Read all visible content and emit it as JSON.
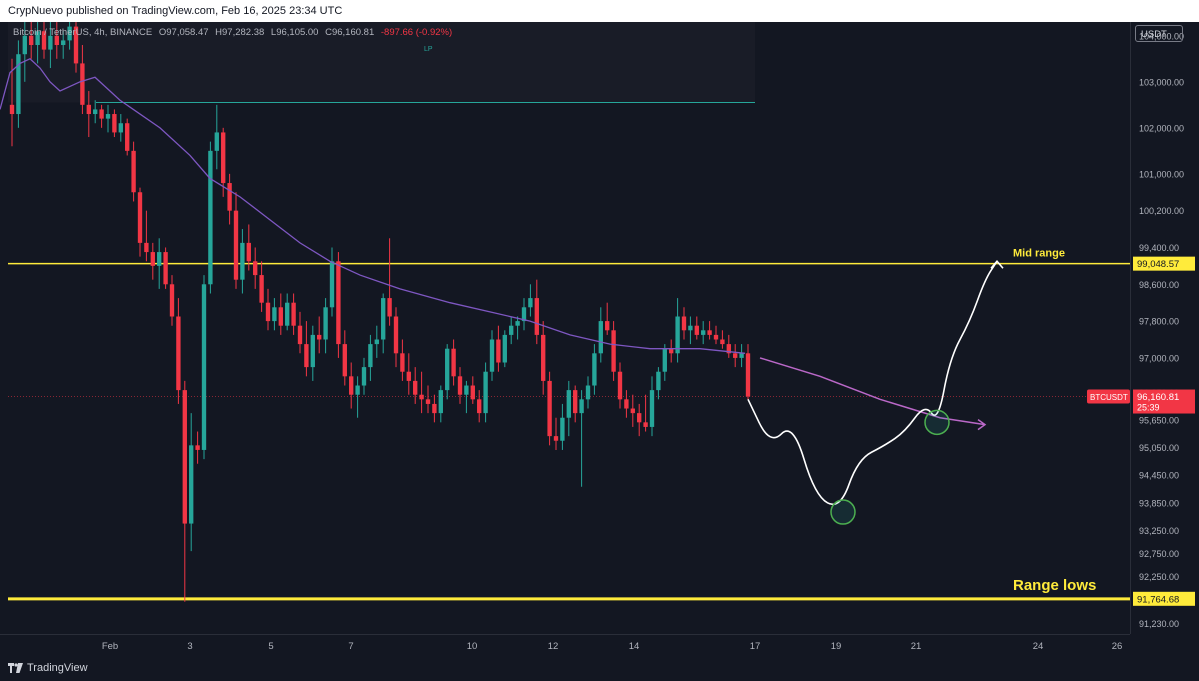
{
  "header": {
    "text": "CrypNuevo published on TradingView.com, Feb 16, 2025 23:34 UTC"
  },
  "legend": {
    "symbol": "Bitcoin / TetherUS, 4h, BINANCE",
    "o": "O97,058.47",
    "h": "H97,282.38",
    "l": "L96,105.00",
    "c": "C96,160.81",
    "change": "-897.66 (-0.92%)"
  },
  "currency": "USDT",
  "lp_label": "LP",
  "footer": {
    "brand": "TradingView"
  },
  "colors": {
    "background": "#131722",
    "up": "#26a69a",
    "down": "#f23645",
    "ma": "#7e57c2",
    "level": "#ffeb3b",
    "projection": "#ffffff",
    "projection_ma": "#ba68c8"
  },
  "chart_data": {
    "type": "candlestick",
    "timeframe": "4h",
    "y_ticks": [
      "104,000.00",
      "103,000.00",
      "102,000.00",
      "101,000.00",
      "100,200.00",
      "99,400.00",
      "98,600.00",
      "97,800.00",
      "97,000.00",
      "96,250.00",
      "95,650.00",
      "95,050.00",
      "94,450.00",
      "93,850.00",
      "93,250.00",
      "92,750.00",
      "92,250.00",
      "91,230.00"
    ],
    "x_ticks": [
      "Feb",
      "3",
      "5",
      "7",
      "10",
      "12",
      "14",
      "17",
      "19",
      "21",
      "24",
      "26"
    ],
    "ylim": [
      91000,
      104300
    ],
    "levels": [
      {
        "label": "Mid range",
        "price": 99048.57,
        "price_label": "99,048.57"
      },
      {
        "label": "Range lows",
        "price": 91764.68,
        "price_label": "91,764.68"
      }
    ],
    "resistance_line": {
      "price": 102550
    },
    "last_price": {
      "symbol": "BTCUSDT",
      "price_label": "96,160.81",
      "countdown": "25:39",
      "price": 96160.81
    },
    "candles": [
      [
        102500,
        103500,
        101600,
        102300
      ],
      [
        102300,
        103900,
        102000,
        103600
      ],
      [
        103600,
        104300,
        103000,
        104000
      ],
      [
        104000,
        104300,
        103500,
        103800
      ],
      [
        103800,
        104300,
        103400,
        104100
      ],
      [
        104100,
        104300,
        103500,
        103700
      ],
      [
        103700,
        104300,
        103300,
        104000
      ],
      [
        104000,
        104300,
        103500,
        103800
      ],
      [
        103800,
        104100,
        103500,
        103900
      ],
      [
        103900,
        104300,
        103700,
        104200
      ],
      [
        104200,
        104300,
        103200,
        103400
      ],
      [
        103400,
        103800,
        102300,
        102500
      ],
      [
        102500,
        102800,
        101800,
        102300
      ],
      [
        102300,
        102600,
        102100,
        102400
      ],
      [
        102400,
        102500,
        102000,
        102200
      ],
      [
        102200,
        102500,
        101900,
        102300
      ],
      [
        102300,
        102400,
        101800,
        101900
      ],
      [
        101900,
        102300,
        101700,
        102100
      ],
      [
        102100,
        102200,
        101400,
        101500
      ],
      [
        101500,
        101700,
        100400,
        100600
      ],
      [
        100600,
        100700,
        99200,
        99500
      ],
      [
        99500,
        100200,
        99100,
        99300
      ],
      [
        99300,
        99500,
        98700,
        99000
      ],
      [
        99000,
        99600,
        98500,
        99300
      ],
      [
        99300,
        99400,
        98500,
        98600
      ],
      [
        98600,
        98800,
        97700,
        97900
      ],
      [
        97900,
        98300,
        96000,
        96300
      ],
      [
        96300,
        96500,
        91700,
        93400
      ],
      [
        93400,
        95800,
        92800,
        95100
      ],
      [
        95100,
        95400,
        94700,
        95000
      ],
      [
        95000,
        98800,
        94800,
        98600
      ],
      [
        98600,
        101700,
        98400,
        101500
      ],
      [
        101500,
        102500,
        101100,
        101900
      ],
      [
        101900,
        102000,
        100500,
        100800
      ],
      [
        100800,
        101000,
        99900,
        100200
      ],
      [
        100200,
        100600,
        98500,
        98700
      ],
      [
        98700,
        99800,
        98400,
        99500
      ],
      [
        99500,
        99900,
        98900,
        99100
      ],
      [
        99100,
        99400,
        98500,
        98800
      ],
      [
        98800,
        99100,
        98000,
        98200
      ],
      [
        98200,
        98500,
        97600,
        97800
      ],
      [
        97800,
        98300,
        97600,
        98100
      ],
      [
        98100,
        98400,
        97500,
        97700
      ],
      [
        97700,
        98400,
        97600,
        98200
      ],
      [
        98200,
        98400,
        97500,
        97700
      ],
      [
        97700,
        98000,
        97100,
        97300
      ],
      [
        97300,
        97800,
        96600,
        96800
      ],
      [
        96800,
        97700,
        96500,
        97500
      ],
      [
        97500,
        97900,
        97100,
        97400
      ],
      [
        97400,
        98300,
        97100,
        98100
      ],
      [
        98100,
        99400,
        97900,
        99100
      ],
      [
        99100,
        99300,
        97000,
        97300
      ],
      [
        97300,
        97600,
        96400,
        96600
      ],
      [
        96600,
        96900,
        95900,
        96200
      ],
      [
        96200,
        96600,
        95700,
        96400
      ],
      [
        96400,
        97000,
        96200,
        96800
      ],
      [
        96800,
        97500,
        96500,
        97300
      ],
      [
        97300,
        97700,
        97000,
        97400
      ],
      [
        97400,
        98400,
        97100,
        98300
      ],
      [
        98300,
        99600,
        97700,
        97900
      ],
      [
        97900,
        98100,
        96800,
        97100
      ],
      [
        97100,
        97400,
        96500,
        96700
      ],
      [
        96700,
        97100,
        96200,
        96500
      ],
      [
        96500,
        96800,
        96000,
        96200
      ],
      [
        96200,
        96700,
        95800,
        96100
      ],
      [
        96100,
        96400,
        95800,
        96000
      ],
      [
        96000,
        96200,
        95600,
        95800
      ],
      [
        95800,
        96400,
        95600,
        96300
      ],
      [
        96300,
        97300,
        96100,
        97200
      ],
      [
        97200,
        97400,
        96400,
        96600
      ],
      [
        96600,
        96800,
        96000,
        96200
      ],
      [
        96200,
        96500,
        95800,
        96400
      ],
      [
        96400,
        96600,
        96000,
        96100
      ],
      [
        96100,
        96300,
        95600,
        95800
      ],
      [
        95800,
        96900,
        95600,
        96700
      ],
      [
        96700,
        97600,
        96500,
        97400
      ],
      [
        97400,
        97700,
        96700,
        96900
      ],
      [
        96900,
        97600,
        96800,
        97500
      ],
      [
        97500,
        97900,
        97300,
        97700
      ],
      [
        97700,
        97900,
        97400,
        97800
      ],
      [
        97800,
        98300,
        97600,
        98100
      ],
      [
        98100,
        98600,
        97900,
        98300
      ],
      [
        98300,
        98700,
        97300,
        97500
      ],
      [
        97500,
        97800,
        96200,
        96500
      ],
      [
        96500,
        96700,
        95100,
        95300
      ],
      [
        95300,
        95700,
        95000,
        95200
      ],
      [
        95200,
        96000,
        95000,
        95700
      ],
      [
        95700,
        96500,
        95300,
        96300
      ],
      [
        96300,
        96400,
        95600,
        95800
      ],
      [
        95800,
        96300,
        94200,
        96100
      ],
      [
        96100,
        96600,
        95900,
        96400
      ],
      [
        96400,
        97300,
        96200,
        97100
      ],
      [
        97100,
        98100,
        96900,
        97800
      ],
      [
        97800,
        98200,
        97500,
        97600
      ],
      [
        97600,
        97800,
        96500,
        96700
      ],
      [
        96700,
        96900,
        95900,
        96100
      ],
      [
        96100,
        96300,
        95700,
        95900
      ],
      [
        95900,
        96200,
        95500,
        95800
      ],
      [
        95800,
        96000,
        95300,
        95600
      ],
      [
        95600,
        96200,
        95400,
        95500
      ],
      [
        95500,
        96600,
        95300,
        96300
      ],
      [
        96300,
        96800,
        96100,
        96700
      ],
      [
        96700,
        97300,
        96500,
        97200
      ],
      [
        97200,
        97400,
        96900,
        97100
      ],
      [
        97100,
        98300,
        96900,
        97900
      ],
      [
        97900,
        98100,
        97400,
        97600
      ],
      [
        97600,
        97900,
        97300,
        97700
      ],
      [
        97700,
        97900,
        97400,
        97500
      ],
      [
        97500,
        97800,
        97300,
        97600
      ],
      [
        97600,
        97800,
        97400,
        97500
      ],
      [
        97500,
        97700,
        97300,
        97400
      ],
      [
        97400,
        97600,
        97200,
        97300
      ],
      [
        97300,
        97500,
        97000,
        97100
      ],
      [
        97100,
        97300,
        96800,
        97000
      ],
      [
        97000,
        97300,
        96800,
        97100
      ],
      [
        97100,
        97300,
        96100,
        96160.81
      ]
    ],
    "moving_average": [
      [
        0,
        102400
      ],
      [
        10,
        103200
      ],
      [
        20,
        103400
      ],
      [
        30,
        103500
      ],
      [
        40,
        103300
      ],
      [
        50,
        103000
      ],
      [
        60,
        102800
      ],
      [
        80,
        103000
      ],
      [
        95,
        103100
      ],
      [
        120,
        102600
      ],
      [
        160,
        102000
      ],
      [
        190,
        101400
      ],
      [
        210,
        100900
      ],
      [
        240,
        100500
      ],
      [
        270,
        100000
      ],
      [
        300,
        99500
      ],
      [
        330,
        99100
      ],
      [
        360,
        98800
      ],
      [
        400,
        98500
      ],
      [
        450,
        98200
      ],
      [
        490,
        98000
      ],
      [
        530,
        97800
      ],
      [
        570,
        97500
      ],
      [
        610,
        97300
      ],
      [
        650,
        97200
      ],
      [
        700,
        97200
      ],
      [
        745,
        97100
      ]
    ],
    "projection_path_label": "",
    "projection_points": [
      [
        748,
        96100
      ],
      [
        770,
        95100
      ],
      [
        793,
        95600
      ],
      [
        815,
        94000
      ],
      [
        840,
        93700
      ],
      [
        858,
        94800
      ],
      [
        885,
        95100
      ],
      [
        905,
        95400
      ],
      [
        925,
        96000
      ],
      [
        938,
        95600
      ],
      [
        950,
        97000
      ],
      [
        970,
        97800
      ],
      [
        985,
        98700
      ],
      [
        997,
        99100
      ]
    ],
    "projection_ma_points": [
      [
        760,
        97000
      ],
      [
        820,
        96600
      ],
      [
        880,
        96100
      ],
      [
        940,
        95700
      ],
      [
        985,
        95550
      ]
    ],
    "circles": [
      [
        843,
        93650
      ],
      [
        937,
        95600
      ]
    ]
  }
}
